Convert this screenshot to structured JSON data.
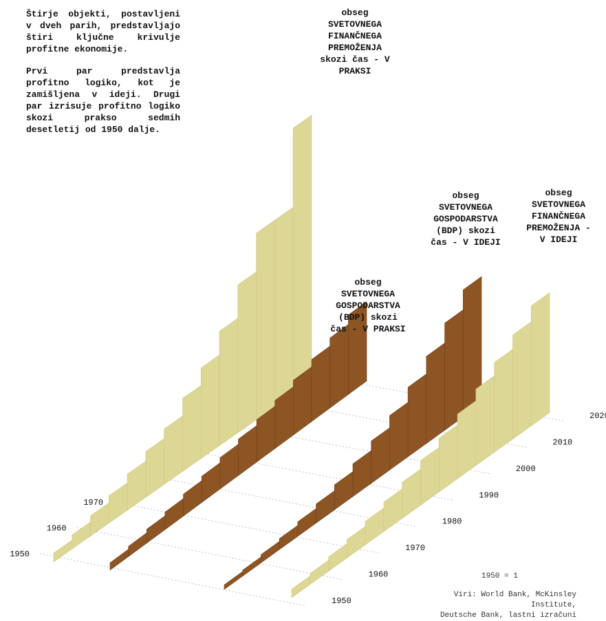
{
  "intro": {
    "p1": "Štirje objekti, postavljeni v dveh parih, predstavljajo štiri ključne krivulje profitne ekonomije.",
    "p2": "Prvi par predstavlja profitno logiko, kot je zamišljena v ideji. Drugi par izrisuje profitno logiko skozi prakso sedmih desetletij od 1950 dalje."
  },
  "labels": {
    "fin_praksa": "obseg\nSVETOVNEGA\nFINANČNEGA\nPREMOŽENJA\nskozi čas - V\nPRAKSI",
    "bdp_praksa": "obseg\nSVETOVNEGA\nGOSPODARSTVA\n(BDP) skozi\nčas - V PRAKSI",
    "bdp_ideja": "obseg\nSVETOVNEGA\nGOSPODARSTVA\n(BDP) skozi\nčas - V IDEJI",
    "fin_ideja": "obseg\nSVETOVNEGA\nFINANČNEGA\nPREMOŽENJA -\nV IDEJI"
  },
  "note": "1950 = 1",
  "sources": "Viri: World Bank, McKinsley Institute,\nDeutsche Bank, lastni izračuni",
  "colors": {
    "finance": "#ddd796",
    "gdp": "#8e5524",
    "grid": "#bdbdbd"
  },
  "chart_data": {
    "type": "bar",
    "x_unit": "year",
    "baseline_note": "1950 = 1",
    "x": [
      1950,
      1955,
      1960,
      1965,
      1970,
      1975,
      1980,
      1985,
      1990,
      1995,
      2000,
      2005,
      2010,
      2015
    ],
    "x_ticks_back": [
      1950,
      1960,
      1970
    ],
    "x_ticks_front": [
      1950,
      1960,
      1970,
      1980,
      1990,
      2000,
      2010,
      2020
    ],
    "series": [
      {
        "name": "obseg SVETOVNEGA FINANČNEGA PREMOŽENJA skozi čas - V PRAKSI",
        "color": "#ddd796",
        "values": [
          1,
          1.6,
          2.3,
          3.1,
          4.1,
          5.2,
          6.3,
          8.3,
          10.3,
          13.0,
          16.8,
          21.2,
          21.2,
          30.2
        ]
      },
      {
        "name": "obseg SVETOVNEGA GOSPODARSTVA (BDP) skozi čas - V PRAKSI",
        "color": "#8e5524",
        "values": [
          1,
          1.4,
          1.9,
          2.4,
          3.0,
          3.6,
          4.3,
          5.0,
          5.8,
          6.6,
          7.5,
          8.5,
          9.6,
          10.9
        ]
      },
      {
        "name": "obseg SVETOVNEGA GOSPODARSTVA (BDP) skozi čas - V IDEJI",
        "color": "#8e5524",
        "values": [
          1,
          1.3,
          1.8,
          2.4,
          3.2,
          4.2,
          5.5,
          7.2,
          9.3,
          12.0,
          15.3,
          19.2,
          23.6,
          28.0
        ]
      },
      {
        "name": "obseg SVETOVNEGA FINANČNEGA PREMOŽENJA - V IDEJI",
        "color": "#ddd796",
        "values": [
          1,
          1.3,
          1.7,
          2.2,
          2.8,
          3.5,
          4.3,
          5.3,
          6.4,
          7.7,
          9.1,
          10.7,
          12.4,
          14.3
        ]
      }
    ]
  }
}
